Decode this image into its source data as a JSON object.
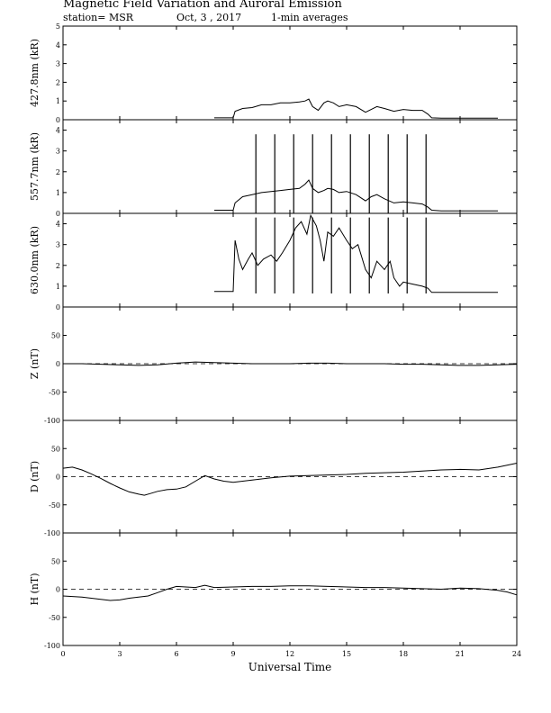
{
  "header": {
    "title": "Magnetic Field Variation and Auroral Emission",
    "station": "station= MSR",
    "date": "Oct, 3  , 2017",
    "averaging": "1-min averages"
  },
  "chart_data": [
    {
      "type": "line",
      "ylabel": "427.8nm (kR)",
      "ylim": [
        0,
        5
      ],
      "yticks": [
        0,
        1,
        2,
        3,
        4,
        5
      ],
      "xlim": [
        0,
        24
      ],
      "series": [
        {
          "x": [
            8,
            9,
            9.1,
            9.5,
            10,
            10.5,
            11,
            11.5,
            12,
            12.5,
            12.8,
            13,
            13.2,
            13.5,
            13.8,
            14,
            14.3,
            14.6,
            15,
            15.5,
            16,
            16.3,
            16.6,
            17,
            17.5,
            18,
            18.5,
            19,
            19.3,
            19.5,
            20,
            21,
            22,
            23
          ],
          "y": [
            0.1,
            0.1,
            0.45,
            0.6,
            0.65,
            0.8,
            0.8,
            0.9,
            0.9,
            0.95,
            1.0,
            1.1,
            0.7,
            0.5,
            0.9,
            1.0,
            0.9,
            0.7,
            0.8,
            0.7,
            0.4,
            0.55,
            0.7,
            0.6,
            0.45,
            0.55,
            0.5,
            0.5,
            0.3,
            0.1,
            0.08,
            0.08,
            0.08,
            0.08
          ]
        }
      ],
      "spikes": {
        "x": [],
        "top": 0
      }
    },
    {
      "type": "line",
      "ylabel": "557.7nm (kR)",
      "ylim": [
        0,
        4.5
      ],
      "yticks": [
        0,
        1,
        2,
        3,
        4
      ],
      "xlim": [
        0,
        24
      ],
      "series": [
        {
          "x": [
            8,
            9,
            9.1,
            9.5,
            10,
            10.5,
            11,
            11.5,
            12,
            12.5,
            12.8,
            13,
            13.2,
            13.5,
            13.8,
            14,
            14.3,
            14.6,
            15,
            15.5,
            16,
            16.3,
            16.6,
            17,
            17.5,
            18,
            18.5,
            19,
            19.3,
            19.5,
            20,
            21,
            22,
            23
          ],
          "y": [
            0.15,
            0.15,
            0.5,
            0.8,
            0.9,
            1.0,
            1.05,
            1.1,
            1.15,
            1.2,
            1.4,
            1.6,
            1.2,
            1.0,
            1.1,
            1.2,
            1.15,
            1.0,
            1.05,
            0.9,
            0.6,
            0.8,
            0.9,
            0.7,
            0.5,
            0.55,
            0.5,
            0.45,
            0.3,
            0.15,
            0.12,
            0.12,
            0.12,
            0.12
          ]
        }
      ],
      "spikes": {
        "x": [
          10.2,
          11.2,
          12.2,
          13.2,
          14.2,
          15.2,
          16.2,
          17.2,
          18.2,
          19.2
        ],
        "top": 3.8
      }
    },
    {
      "type": "line",
      "ylabel": "630.0nm (kR)",
      "ylim": [
        0,
        4.5
      ],
      "yticks": [
        0,
        1,
        2,
        3,
        4
      ],
      "xlim": [
        0,
        24
      ],
      "series": [
        {
          "x": [
            8,
            9,
            9.1,
            9.3,
            9.5,
            9.8,
            10,
            10.3,
            10.6,
            11,
            11.3,
            11.6,
            12,
            12.3,
            12.6,
            12.9,
            13.1,
            13.4,
            13.6,
            13.8,
            14,
            14.3,
            14.6,
            15,
            15.3,
            15.6,
            16,
            16.3,
            16.6,
            17,
            17.3,
            17.5,
            17.8,
            18,
            18.5,
            19,
            19.3,
            19.5,
            20,
            21,
            22,
            23
          ],
          "y": [
            0.75,
            0.75,
            3.2,
            2.3,
            1.8,
            2.3,
            2.6,
            2.0,
            2.3,
            2.5,
            2.2,
            2.6,
            3.2,
            3.8,
            4.1,
            3.5,
            4.4,
            3.9,
            3.2,
            2.2,
            3.6,
            3.4,
            3.8,
            3.2,
            2.8,
            3.0,
            1.8,
            1.4,
            2.2,
            1.8,
            2.2,
            1.4,
            1.0,
            1.2,
            1.1,
            1.0,
            0.9,
            0.7,
            0.7,
            0.7,
            0.7,
            0.7
          ]
        }
      ],
      "spikes": {
        "x": [
          10.2,
          11.2,
          12.2,
          13.2,
          14.2,
          15.2,
          16.2,
          17.2,
          18.2,
          19.2
        ],
        "top": 4.3,
        "bottom": 0.65
      }
    },
    {
      "type": "line",
      "ylabel": "Z (nT)",
      "ylim": [
        -100,
        100
      ],
      "yticks": [
        -100,
        -50,
        0,
        50
      ],
      "zero_line": "dashed",
      "xlim": [
        0,
        24
      ],
      "series": [
        {
          "x": [
            0,
            1,
            2,
            3,
            4,
            5,
            6,
            7,
            8,
            9,
            10,
            11,
            12,
            13,
            14,
            15,
            16,
            17,
            18,
            19,
            20,
            21,
            22,
            23,
            24
          ],
          "y": [
            0,
            0,
            -1,
            -2,
            -3,
            -2,
            1,
            3,
            2,
            1,
            0,
            0,
            0,
            1,
            1,
            0,
            0,
            0,
            -1,
            -1,
            -2,
            -3,
            -3,
            -2,
            -1
          ]
        }
      ]
    },
    {
      "type": "line",
      "ylabel": "D (nT)",
      "ylim": [
        -100,
        100
      ],
      "yticks": [
        -100,
        -50,
        0,
        50
      ],
      "zero_line": "dashed",
      "xlim": [
        0,
        24
      ],
      "series": [
        {
          "x": [
            0,
            0.5,
            1,
            1.5,
            2,
            2.5,
            3,
            3.5,
            4,
            4.3,
            4.6,
            5,
            5.5,
            6,
            6.5,
            7,
            7.5,
            8,
            8.5,
            9,
            10,
            11,
            12,
            13,
            14,
            15,
            16,
            17,
            18,
            19,
            20,
            21,
            22,
            23,
            24
          ],
          "y": [
            15,
            17,
            12,
            5,
            -3,
            -12,
            -20,
            -27,
            -31,
            -33,
            -30,
            -26,
            -23,
            -22,
            -18,
            -8,
            2,
            -4,
            -8,
            -10,
            -6,
            -2,
            1,
            2,
            3,
            4,
            6,
            7,
            8,
            10,
            12,
            13,
            12,
            17,
            24
          ]
        }
      ]
    },
    {
      "type": "line",
      "ylabel": "H (nT)",
      "ylim": [
        -100,
        100
      ],
      "yticks": [
        -100,
        -50,
        0,
        50
      ],
      "zero_line": "dashed",
      "xlim": [
        0,
        24
      ],
      "series": [
        {
          "x": [
            0,
            0.5,
            1,
            1.5,
            2,
            2.5,
            3,
            3.5,
            4,
            4.5,
            5,
            5.5,
            6,
            6.5,
            7,
            7.5,
            8,
            9,
            10,
            11,
            12,
            13,
            14,
            15,
            16,
            17,
            18,
            19,
            20,
            21,
            22,
            23,
            23.5,
            24
          ],
          "y": [
            -12,
            -13,
            -14,
            -16,
            -18,
            -20,
            -19,
            -16,
            -14,
            -12,
            -6,
            0,
            5,
            4,
            3,
            7,
            3,
            4,
            5,
            5,
            6,
            6,
            5,
            4,
            3,
            3,
            2,
            1,
            0,
            2,
            1,
            -2,
            -5,
            -10
          ]
        }
      ]
    }
  ],
  "x_axis": {
    "label": "Universal Time",
    "ticks": [
      0,
      3,
      6,
      9,
      12,
      15,
      18,
      21,
      24
    ],
    "tick_labels": [
      "0",
      "3",
      "6",
      "9",
      "12",
      "15",
      "18",
      "21",
      "24"
    ]
  }
}
